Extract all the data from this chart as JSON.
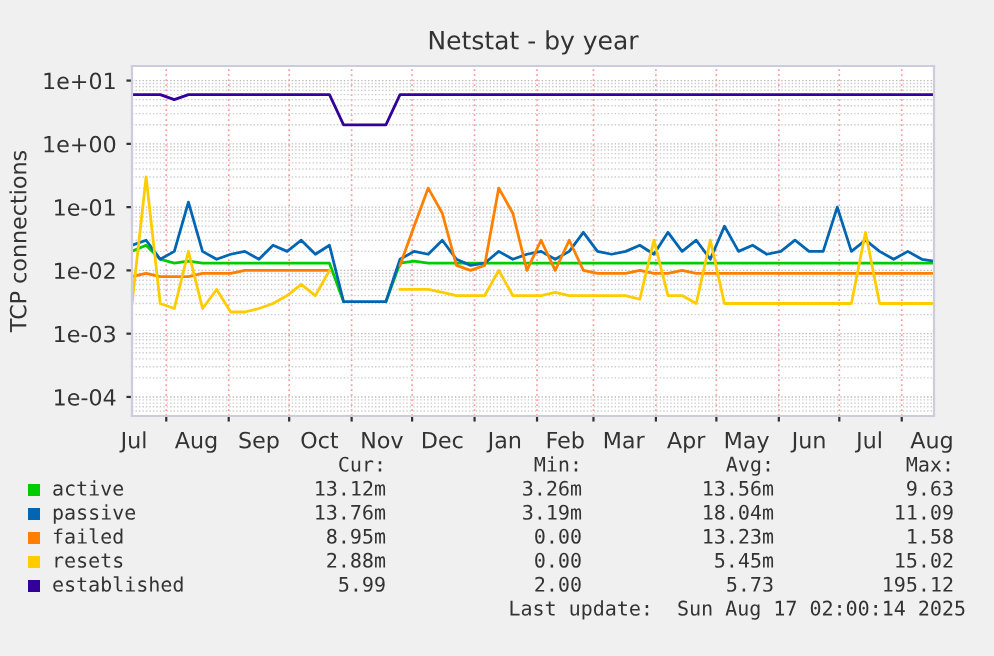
{
  "chart_data": {
    "type": "line",
    "title": "Netstat - by year",
    "ylabel": "TCP connections",
    "log": "y",
    "grid": true,
    "legend": "bottom",
    "marker": "none",
    "line_style": "solid",
    "xlim": [
      "2024-07-15",
      "2025-08-17"
    ],
    "ylim": [
      5e-05,
      17
    ],
    "xticks": [
      {
        "value": "2024-07-16",
        "label": "Jul"
      },
      {
        "value": "2024-08-01",
        "label": null
      },
      {
        "value": "2024-08-16",
        "label": "Aug"
      },
      {
        "value": "2024-09-01",
        "label": null
      },
      {
        "value": "2024-09-16",
        "label": "Sep"
      },
      {
        "value": "2024-10-01",
        "label": null
      },
      {
        "value": "2024-10-16",
        "label": "Oct"
      },
      {
        "value": "2024-11-01",
        "label": null
      },
      {
        "value": "2024-11-16",
        "label": "Nov"
      },
      {
        "value": "2024-12-01",
        "label": null
      },
      {
        "value": "2024-12-16",
        "label": "Dec"
      },
      {
        "value": "2025-01-01",
        "label": null
      },
      {
        "value": "2025-01-16",
        "label": "Jan"
      },
      {
        "value": "2025-02-01",
        "label": null
      },
      {
        "value": "2025-02-15",
        "label": "Feb"
      },
      {
        "value": "2025-03-01",
        "label": null
      },
      {
        "value": "2025-03-16",
        "label": "Mar"
      },
      {
        "value": "2025-04-01",
        "label": null
      },
      {
        "value": "2025-04-16",
        "label": "Apr"
      },
      {
        "value": "2025-05-01",
        "label": null
      },
      {
        "value": "2025-05-16",
        "label": "May"
      },
      {
        "value": "2025-06-01",
        "label": null
      },
      {
        "value": "2025-06-16",
        "label": "Jun"
      },
      {
        "value": "2025-07-01",
        "label": null
      },
      {
        "value": "2025-07-16",
        "label": "Jul"
      },
      {
        "value": "2025-08-01",
        "label": null
      },
      {
        "value": "2025-08-16",
        "label": "Aug"
      }
    ],
    "yticks": [
      {
        "value": 10,
        "label": "1e+01"
      },
      {
        "value": 1,
        "label": "1e+00"
      },
      {
        "value": 0.1,
        "label": "1e-01"
      },
      {
        "value": 0.01,
        "label": "1e-02"
      },
      {
        "value": 0.001,
        "label": "1e-03"
      },
      {
        "value": 0.0001,
        "label": "1e-04"
      }
    ],
    "x": [
      "2024-07-15",
      "2024-07-22",
      "2024-07-29",
      "2024-08-05",
      "2024-08-12",
      "2024-08-19",
      "2024-08-26",
      "2024-09-02",
      "2024-09-09",
      "2024-09-16",
      "2024-09-23",
      "2024-09-30",
      "2024-10-07",
      "2024-10-14",
      "2024-10-21",
      "2024-10-28",
      "2024-11-04",
      "2024-11-11",
      "2024-11-18",
      "2024-11-25",
      "2024-12-02",
      "2024-12-09",
      "2024-12-16",
      "2024-12-23",
      "2024-12-30",
      "2025-01-06",
      "2025-01-13",
      "2025-01-20",
      "2025-01-27",
      "2025-02-03",
      "2025-02-10",
      "2025-02-17",
      "2025-02-24",
      "2025-03-03",
      "2025-03-10",
      "2025-03-17",
      "2025-03-24",
      "2025-03-31",
      "2025-04-07",
      "2025-04-14",
      "2025-04-21",
      "2025-04-28",
      "2025-05-05",
      "2025-05-12",
      "2025-05-19",
      "2025-05-26",
      "2025-06-02",
      "2025-06-09",
      "2025-06-16",
      "2025-06-23",
      "2025-06-30",
      "2025-07-07",
      "2025-07-14",
      "2025-07-21",
      "2025-07-28",
      "2025-08-04",
      "2025-08-11",
      "2025-08-17"
    ],
    "series": [
      {
        "name": "active",
        "color": "#00cc00",
        "values": [
          0.02,
          0.025,
          0.015,
          0.013,
          0.014,
          0.013,
          0.013,
          0.013,
          0.013,
          0.013,
          0.013,
          0.013,
          0.013,
          0.013,
          0.013,
          0.0032,
          null,
          null,
          0.0032,
          0.013,
          0.014,
          0.013,
          0.013,
          0.013,
          0.013,
          0.013,
          0.013,
          0.013,
          0.013,
          0.013,
          0.013,
          0.013,
          0.013,
          0.013,
          0.013,
          0.013,
          0.013,
          0.013,
          0.013,
          0.013,
          0.013,
          0.013,
          0.013,
          0.013,
          0.013,
          0.013,
          0.013,
          0.013,
          0.013,
          0.013,
          0.013,
          0.013,
          0.013,
          0.013,
          0.013,
          0.013,
          0.013,
          0.013
        ]
      },
      {
        "name": "passive",
        "color": "#0066b3",
        "values": [
          0.025,
          0.03,
          0.015,
          0.02,
          0.12,
          0.02,
          0.015,
          0.018,
          0.02,
          0.015,
          0.025,
          0.02,
          0.03,
          0.018,
          0.025,
          0.0032,
          0.0032,
          0.0032,
          0.0032,
          0.015,
          0.02,
          0.018,
          0.03,
          0.015,
          0.012,
          0.013,
          0.02,
          0.015,
          0.018,
          0.02,
          0.015,
          0.02,
          0.04,
          0.02,
          0.018,
          0.02,
          0.025,
          0.018,
          0.04,
          0.02,
          0.03,
          0.015,
          0.05,
          0.02,
          0.025,
          0.018,
          0.02,
          0.03,
          0.02,
          0.02,
          0.1,
          0.02,
          0.03,
          0.02,
          0.015,
          0.02,
          0.015,
          0.014
        ]
      },
      {
        "name": "failed",
        "color": "#ff8000",
        "values": [
          0.008,
          0.009,
          0.008,
          0.008,
          0.008,
          0.009,
          0.009,
          0.009,
          0.01,
          0.01,
          0.01,
          0.01,
          0.01,
          0.01,
          0.01,
          null,
          null,
          null,
          null,
          0.012,
          0.05,
          0.2,
          0.08,
          0.012,
          0.01,
          0.012,
          0.2,
          0.08,
          0.01,
          0.03,
          0.01,
          0.03,
          0.01,
          0.009,
          0.009,
          0.009,
          0.01,
          0.009,
          0.009,
          0.01,
          0.009,
          0.009,
          0.009,
          0.009,
          0.009,
          0.009,
          0.009,
          0.009,
          0.009,
          0.009,
          0.009,
          0.009,
          0.009,
          0.009,
          0.009,
          0.009,
          0.009,
          0.009
        ]
      },
      {
        "name": "resets",
        "color": "#ffcc00",
        "values": [
          0.003,
          0.3,
          0.003,
          0.0025,
          0.02,
          0.0025,
          0.005,
          0.0022,
          0.0022,
          0.0025,
          0.003,
          0.004,
          0.006,
          0.004,
          0.01,
          null,
          null,
          null,
          null,
          0.005,
          0.005,
          0.005,
          0.0045,
          0.004,
          0.004,
          0.004,
          0.01,
          0.004,
          0.004,
          0.004,
          0.0045,
          0.004,
          0.004,
          0.004,
          0.004,
          0.004,
          0.0035,
          0.03,
          0.004,
          0.004,
          0.003,
          0.03,
          0.003,
          0.003,
          0.003,
          0.003,
          0.003,
          0.003,
          0.003,
          0.003,
          0.003,
          0.003,
          0.04,
          0.003,
          0.003,
          0.003,
          0.003,
          0.003
        ]
      },
      {
        "name": "established",
        "color": "#330099",
        "values": [
          6,
          6,
          6,
          5,
          6,
          6,
          6,
          6,
          6,
          6,
          6,
          6,
          6,
          6,
          6,
          2,
          2,
          2,
          2,
          6,
          6,
          6,
          6,
          6,
          6,
          6,
          6,
          6,
          6,
          6,
          6,
          6,
          6,
          6,
          6,
          6,
          6,
          6,
          6,
          6,
          6,
          6,
          6,
          6,
          6,
          6,
          6,
          6,
          6,
          6,
          6,
          6,
          6,
          6,
          6,
          6,
          6,
          6
        ]
      }
    ],
    "annotations": [
      "Cur:",
      "Min:",
      "Avg:",
      "Max:",
      "13.12m",
      "3.26m",
      "13.56m",
      "9.63",
      "13.76m",
      "3.19m",
      "18.04m",
      "11.09",
      "8.95m",
      "0.00",
      "13.23m",
      "1.58",
      "2.88m",
      "0.00",
      "5.45m",
      "15.02",
      "5.99",
      "2.00",
      "5.73",
      "195.12",
      "Last update:  Sun Aug 17 02:00:14 2025"
    ]
  }
}
